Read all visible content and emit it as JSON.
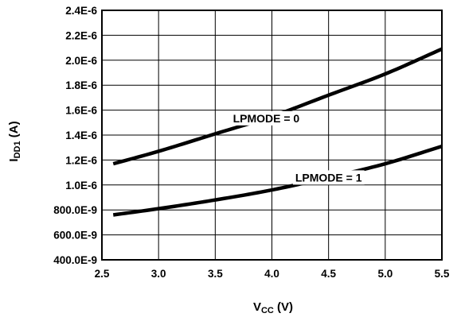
{
  "chart_data": {
    "type": "line",
    "xlabel": {
      "main": "V",
      "sub": "CC",
      "unit": " (V)"
    },
    "ylabel": {
      "main": "I",
      "sub": "DD1",
      "unit": " (A)"
    },
    "xlim": [
      2.5,
      5.5
    ],
    "ylim": [
      4e-07,
      2.4e-06
    ],
    "grid": true,
    "x_ticks": [
      2.5,
      3.0,
      3.5,
      4.0,
      4.5,
      5.0,
      5.5
    ],
    "x_tick_labels": [
      "2.5",
      "3.0",
      "3.5",
      "4.0",
      "4.5",
      "5.0",
      "5.5"
    ],
    "y_ticks": [
      4e-07,
      6e-07,
      8e-07,
      1e-06,
      1.2e-06,
      1.4e-06,
      1.6e-06,
      1.8e-06,
      2e-06,
      2.2e-06,
      2.4e-06
    ],
    "y_tick_labels": [
      "400.0E-9",
      "600.0E-9",
      "800.0E-9",
      "1.0E-6",
      "1.2E-6",
      "1.4E-6",
      "1.6E-6",
      "1.8E-6",
      "2.0E-6",
      "2.2E-6",
      "2.4E-6"
    ],
    "series": [
      {
        "name": "LPMODE = 0",
        "x": [
          2.6,
          3.0,
          3.5,
          4.0,
          4.5,
          5.0,
          5.5
        ],
        "y": [
          1.17e-06,
          1.27e-06,
          1.41e-06,
          1.55e-06,
          1.72e-06,
          1.89e-06,
          2.09e-06
        ]
      },
      {
        "name": "LPMODE = 1",
        "x": [
          2.6,
          3.0,
          3.5,
          4.0,
          4.5,
          5.0,
          5.5
        ],
        "y": [
          7.6e-07,
          8.1e-07,
          8.8e-07,
          9.6e-07,
          1.06e-06,
          1.17e-06,
          1.31e-06
        ]
      }
    ],
    "annotations": [
      {
        "text": "LPMODE = 0",
        "series": 0,
        "x": 3.95
      },
      {
        "text": "LPMODE = 1",
        "series": 1,
        "x": 4.5
      }
    ]
  }
}
